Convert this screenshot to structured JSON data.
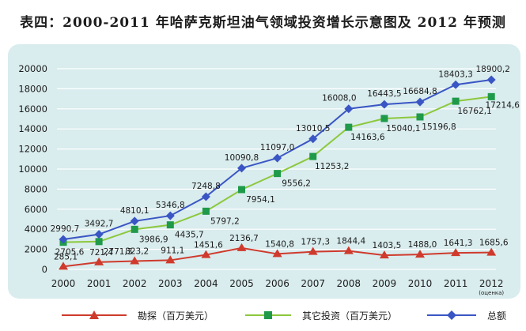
{
  "chart_data": {
    "type": "line",
    "title": "表四：2000-2011 年哈萨克斯坦油气领域投资增长示意图及 2012 年预测",
    "categories": [
      "2000",
      "2001",
      "2002",
      "2003",
      "2004",
      "2005",
      "2006",
      "2007",
      "2008",
      "2009",
      "2010",
      "2011",
      "2012"
    ],
    "x_note": "(оценка)",
    "ylim": [
      0,
      20000
    ],
    "yticks": [
      0,
      2000,
      4000,
      6000,
      8000,
      10000,
      12000,
      14000,
      16000,
      18000,
      20000
    ],
    "ytick_labels": [
      "0",
      "2000",
      "4000",
      "6000",
      "8000",
      "10000",
      "12000",
      "14000",
      "16000",
      "18000",
      "20000"
    ],
    "grid": true,
    "legend_position": "bottom",
    "series": [
      {
        "name": "勘探（百万美元）",
        "color": "#cf3a2c",
        "marker": "triangle",
        "values": [
          285.1,
          721.4,
          823.2,
          911.1,
          1451.6,
          2136.7,
          1540.8,
          1757.3,
          1844.4,
          1403.5,
          1488.0,
          1641.3,
          1685.6
        ],
        "labels": [
          "285,1",
          "721,4",
          "823,2",
          "911,1",
          "1451,6",
          "2136,7",
          "1540,8",
          "1757,3",
          "1844,4",
          "1403,5",
          "1488,0",
          "1641,3",
          "1685,6"
        ]
      },
      {
        "name": "其它投资（百万美元）",
        "color": "#8cc83c",
        "marker_color": "#1f9a4a",
        "marker": "square",
        "values": [
          2705.6,
          2771.3,
          3986.9,
          4435.7,
          5797.2,
          7954.1,
          9556.2,
          11253.2,
          14163.6,
          15040.1,
          15196.8,
          16762.1,
          17214.6
        ],
        "labels": [
          "2705,6",
          "2771,3",
          "3986,9",
          "4435,7",
          "5797,2",
          "7954,1",
          "9556,2",
          "11253,2",
          "14163,6",
          "15040,1",
          "15196,8",
          "16762,1",
          "17214,6"
        ]
      },
      {
        "name": "总额",
        "color": "#3a56c4",
        "marker": "diamond",
        "values": [
          2990.7,
          3492.7,
          4810.1,
          5346.8,
          7248.8,
          10090.8,
          11097.0,
          13010.5,
          16008.0,
          16443.5,
          16684.8,
          18403.3,
          18900.2
        ],
        "labels": [
          "2990,7",
          "3492,7",
          "4810,1",
          "5346,8",
          "7248,8",
          "10090,8",
          "11097,0",
          "13010,5",
          "16008,0",
          "16443,5",
          "16684,8",
          "18403,3",
          "18900,2"
        ]
      }
    ]
  }
}
